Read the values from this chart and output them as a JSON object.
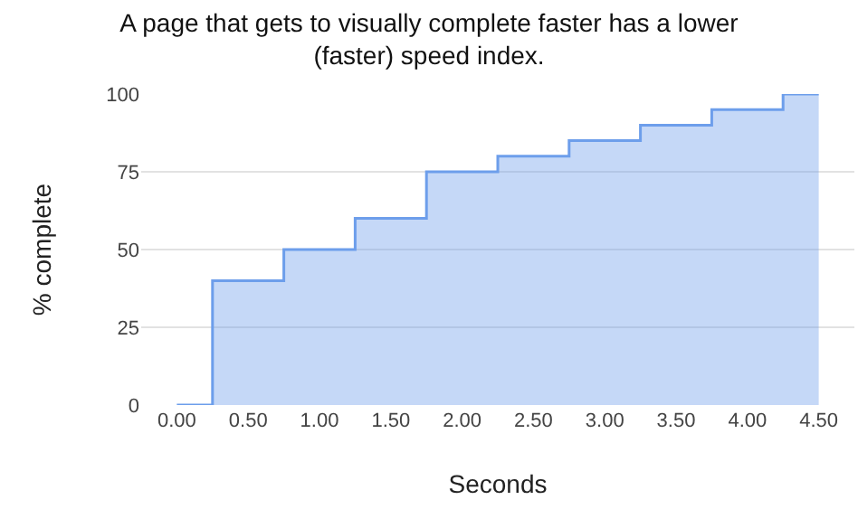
{
  "chart_data": {
    "type": "step",
    "title": "A page that gets to visually complete faster has a lower (faster) speed index.",
    "xlabel": "Seconds",
    "ylabel": "% complete",
    "categories": [
      "0.00",
      "0.50",
      "1.00",
      "1.50",
      "2.00",
      "2.50",
      "3.00",
      "3.50",
      "4.00",
      "4.50"
    ],
    "series": [
      {
        "color": "#6d9eeb",
        "values": [
          0,
          40,
          50,
          60,
          75,
          80,
          85,
          90,
          95,
          100
        ]
      }
    ],
    "ylim": [
      0,
      100
    ],
    "yticks": [
      0,
      25,
      50,
      75,
      100
    ],
    "grid": "y"
  }
}
